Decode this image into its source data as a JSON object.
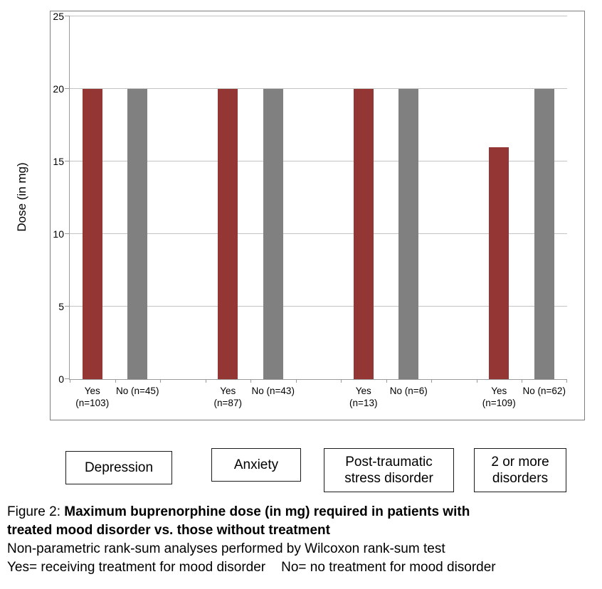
{
  "figure": {
    "caption_prefix": "Figure 2: ",
    "caption_bold_line1": "Maximum buprenorphine dose (in mg) required in patients with",
    "caption_bold_line2": "treated mood disorder vs. those without treatment",
    "note_line1": "Non-parametric rank-sum analyses performed by Wilcoxon rank-sum test",
    "note_line2_left": "Yes= receiving treatment for mood disorder",
    "note_line2_right": "No= no treatment for mood disorder"
  },
  "chart_data": {
    "type": "bar",
    "title": "",
    "xlabel": "",
    "ylabel": "Dose (in mg)",
    "ylim": [
      0,
      25
    ],
    "yticks": [
      0,
      5,
      10,
      15,
      20,
      25
    ],
    "grid": "horizontal-gridlines",
    "legend_position": "none",
    "categories": [
      "Depression",
      "Anxiety",
      "Post-traumatic stress disorder",
      "2 or more disorders"
    ],
    "series": [
      {
        "name": "Yes",
        "color": "#943634",
        "values": [
          20,
          20,
          20,
          16
        ]
      },
      {
        "name": "No",
        "color": "#808080",
        "values": [
          20,
          20,
          20,
          20
        ]
      }
    ],
    "bar_tick_labels": {
      "yes": [
        [
          "Yes",
          "(n=103)"
        ],
        [
          "Yes",
          "(n=87)"
        ],
        [
          "Yes",
          "(n=13)"
        ],
        [
          "Yes",
          "(n=109)"
        ]
      ],
      "no": [
        [
          "No (n=45)"
        ],
        [
          "No (n=43)"
        ],
        [
          "No (n=6)"
        ],
        [
          "No (n=62)"
        ]
      ]
    }
  },
  "colors": {
    "yes_bar": "#943634",
    "no_bar": "#808080",
    "gridline": "#c3c3c3",
    "axis": "#9a9a9a",
    "frame_border": "#7f7f7f"
  }
}
